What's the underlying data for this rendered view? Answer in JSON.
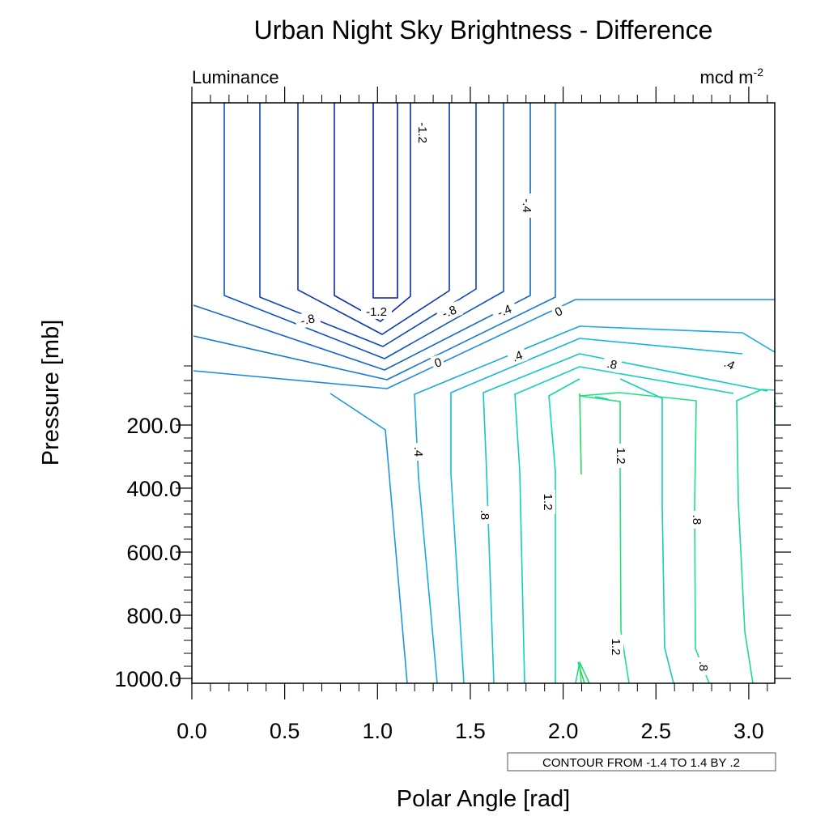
{
  "chart_data": {
    "type": "contour",
    "title": "Urban Night Sky Brightness - Difference",
    "left_string": "Luminance",
    "right_string": "mcd m",
    "right_string_exp": "-2",
    "xlabel": "Polar Angle [rad]",
    "ylabel": "Pressure [mb]",
    "xlim": [
      0.0,
      3.14
    ],
    "x_ticks": [
      "0.0",
      "0.5",
      "1.0",
      "1.5",
      "2.0",
      "2.5",
      "3.0"
    ],
    "y_ticks": [
      "200.0",
      "400.0",
      "600.0",
      "800.0",
      "1000.0"
    ],
    "contour_info": "CONTOUR FROM -1.4 TO 1.4 BY .2",
    "contour_levels": {
      "min": -1.4,
      "max": 1.4,
      "step": 0.2
    },
    "contour_labels": [
      "-1.2",
      "-.4",
      "-1.2",
      "-.8",
      "-.8",
      "-.4",
      "0",
      "0",
      ".4",
      ".8",
      ".4",
      ".4",
      ".8",
      "1.2",
      "1.2",
      ".8",
      "1.2",
      ".8"
    ]
  }
}
